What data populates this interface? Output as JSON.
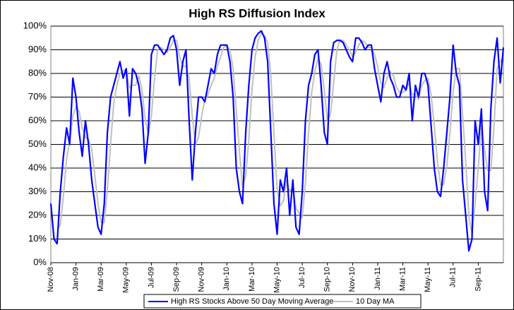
{
  "chart_data": {
    "type": "line",
    "title": "High RS Diffusion Index",
    "categories": [
      "Nov-08",
      null,
      null,
      null,
      null,
      null,
      null,
      null,
      "Jan-09",
      null,
      null,
      null,
      null,
      null,
      null,
      null,
      "Mar-09",
      null,
      null,
      null,
      null,
      null,
      null,
      null,
      "May-09",
      null,
      null,
      null,
      null,
      null,
      null,
      null,
      "Jul-09",
      null,
      null,
      null,
      null,
      null,
      null,
      null,
      "Sep-09",
      null,
      null,
      null,
      null,
      null,
      null,
      null,
      "Nov-09",
      null,
      null,
      null,
      null,
      null,
      null,
      null,
      "Jan-10",
      null,
      null,
      null,
      null,
      null,
      null,
      null,
      "Mar-10",
      null,
      null,
      null,
      null,
      null,
      null,
      null,
      "May-10",
      null,
      null,
      null,
      null,
      null,
      null,
      null,
      "Jul-10",
      null,
      null,
      null,
      null,
      null,
      null,
      null,
      "Sep-10",
      null,
      null,
      null,
      null,
      null,
      null,
      null,
      "Nov-10",
      null,
      null,
      null,
      null,
      null,
      null,
      null,
      "Jan-11",
      null,
      null,
      null,
      null,
      null,
      null,
      null,
      "Mar-11",
      null,
      null,
      null,
      null,
      null,
      null,
      null,
      "May-11",
      null,
      null,
      null,
      null,
      null,
      null,
      null,
      "Jul-11",
      null,
      null,
      null,
      null,
      null,
      null,
      null,
      "Sep-11",
      null,
      null,
      null,
      null,
      null,
      null,
      null,
      null
    ],
    "series": [
      {
        "name": "High RS Stocks Above 50 Day Moving Average",
        "color": "#0000ff",
        "width": 2.2,
        "values": [
          25,
          10,
          8,
          30,
          45,
          57,
          50,
          78,
          70,
          55,
          45,
          60,
          50,
          35,
          25,
          15,
          12,
          25,
          55,
          70,
          75,
          80,
          85,
          78,
          82,
          62,
          82,
          80,
          75,
          65,
          42,
          55,
          88,
          92,
          92,
          90,
          88,
          90,
          95,
          96,
          90,
          75,
          85,
          90,
          60,
          35,
          55,
          70,
          70,
          68,
          75,
          82,
          80,
          88,
          92,
          92,
          92,
          85,
          70,
          40,
          30,
          25,
          55,
          75,
          90,
          95,
          97,
          98,
          95,
          85,
          55,
          25,
          12,
          35,
          30,
          40,
          20,
          35,
          15,
          12,
          30,
          60,
          75,
          80,
          88,
          90,
          75,
          55,
          50,
          85,
          93,
          94,
          94,
          93,
          90,
          87,
          85,
          95,
          95,
          93,
          90,
          92,
          92,
          82,
          75,
          68,
          80,
          85,
          78,
          75,
          70,
          70,
          75,
          73,
          80,
          60,
          75,
          70,
          80,
          80,
          75,
          58,
          40,
          30,
          28,
          40,
          55,
          70,
          92,
          80,
          75,
          35,
          20,
          5,
          10,
          60,
          50,
          65,
          30,
          22,
          65,
          85,
          95,
          76,
          91
        ]
      },
      {
        "name": "10 Day MA",
        "color": "#c0c0c0",
        "width": 2,
        "values": [
          null,
          null,
          14,
          16,
          28,
          44,
          51,
          62,
          66,
          64,
          57,
          53,
          52,
          48,
          37,
          25,
          17,
          17,
          31,
          50,
          67,
          75,
          80,
          81,
          82,
          74,
          75,
          75,
          79,
          73,
          61,
          54,
          62,
          78,
          90,
          91,
          90,
          89,
          91,
          94,
          94,
          87,
          83,
          83,
          78,
          62,
          50,
          53,
          62,
          69,
          71,
          75,
          78,
          83,
          87,
          91,
          92,
          90,
          82,
          65,
          47,
          32,
          37,
          52,
          73,
          87,
          94,
          97,
          96,
          93,
          79,
          55,
          31,
          24,
          26,
          35,
          30,
          32,
          23,
          21,
          19,
          34,
          55,
          72,
          81,
          86,
          84,
          73,
          60,
          63,
          76,
          90,
          94,
          94,
          92,
          90,
          87,
          89,
          92,
          94,
          93,
          91,
          91,
          88,
          83,
          76,
          74,
          78,
          81,
          79,
          74,
          72,
          72,
          73,
          76,
          71,
          71,
          69,
          75,
          77,
          78,
          71,
          58,
          43,
          33,
          33,
          41,
          55,
          72,
          82,
          82,
          63,
          43,
          20,
          12,
          25,
          40,
          58,
          48,
          39,
          39,
          57,
          82,
          85,
          87
        ]
      }
    ],
    "ylim": [
      0,
      100
    ],
    "yticks": [
      {
        "value": 0,
        "label": "0%"
      },
      {
        "value": 10,
        "label": "10%"
      },
      {
        "value": 20,
        "label": "20%"
      },
      {
        "value": 30,
        "label": "30%"
      },
      {
        "value": 40,
        "label": "40%"
      },
      {
        "value": 50,
        "label": "50%"
      },
      {
        "value": 60,
        "label": "60%"
      },
      {
        "value": 70,
        "label": "70%"
      },
      {
        "value": 80,
        "label": "80%"
      },
      {
        "value": 90,
        "label": "90%"
      },
      {
        "value": 100,
        "label": "100%"
      }
    ],
    "grid": true,
    "legend": "bottom"
  }
}
